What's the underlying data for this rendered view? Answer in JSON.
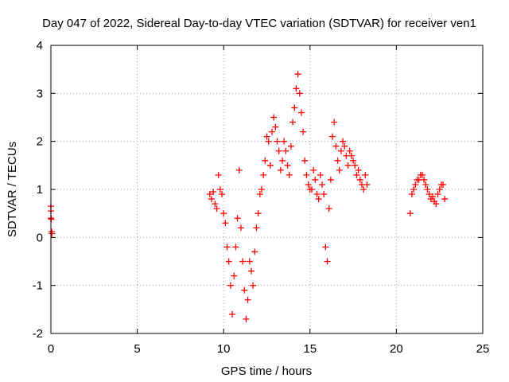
{
  "chart_data": {
    "type": "scatter",
    "title": "Day 047 of 2022, Sidereal Day-to-day VTEC variation (SDTVAR) for receiver ven1",
    "xlabel": "GPS time / hours",
    "ylabel": "SDTVAR / TECUs",
    "xlim": [
      0,
      25
    ],
    "ylim": [
      -2,
      4
    ],
    "xticks": [
      "0",
      "5",
      "10",
      "15",
      "20",
      "25"
    ],
    "yticks": [
      "-2",
      "-1",
      "0",
      "1",
      "2",
      "3",
      "4"
    ],
    "grid": true,
    "marker": "plus",
    "color": "#ff0000",
    "series": [
      {
        "x": [
          0.0,
          0.0,
          0.0,
          0.02,
          0.04,
          0.06
        ],
        "y": [
          0.65,
          0.55,
          0.4,
          0.38,
          0.12,
          0.08
        ]
      },
      {
        "x": [
          9.2,
          9.3,
          9.4,
          9.5,
          9.6,
          9.7,
          9.8,
          9.9,
          10.0,
          10.1,
          10.2,
          10.3,
          10.4,
          10.5,
          10.6,
          10.7,
          10.8,
          10.9,
          11.0,
          11.1,
          11.2,
          11.3,
          11.4,
          11.5,
          11.6,
          11.7,
          11.8,
          11.9,
          12.0,
          12.1,
          12.2,
          12.3,
          12.4,
          12.5,
          12.6,
          12.7,
          12.8,
          12.9,
          13.0,
          13.1,
          13.2,
          13.3,
          13.4,
          13.5,
          13.6,
          13.7,
          13.8,
          13.9,
          14.0,
          14.1,
          14.2,
          14.3,
          14.4,
          14.5,
          14.6,
          14.7,
          14.8,
          14.9,
          15.0,
          15.1,
          15.2,
          15.3,
          15.4,
          15.5,
          15.6,
          15.7,
          15.8,
          15.9,
          16.0,
          16.1,
          16.2,
          16.3,
          16.4,
          16.5,
          16.6,
          16.7,
          16.8,
          16.9,
          17.0,
          17.1,
          17.2,
          17.3,
          17.4,
          17.5,
          17.6,
          17.7,
          17.8,
          17.9,
          18.0,
          18.1,
          18.2,
          18.3
        ],
        "y": [
          0.9,
          0.8,
          0.95,
          0.7,
          0.6,
          1.3,
          1.0,
          0.9,
          0.5,
          0.3,
          -0.2,
          -0.5,
          -1.0,
          -1.6,
          -0.8,
          -0.2,
          0.4,
          1.4,
          0.2,
          -0.5,
          -1.1,
          -1.7,
          -1.3,
          -0.5,
          -0.7,
          -1.0,
          -0.3,
          0.2,
          0.5,
          0.9,
          1.0,
          1.3,
          1.6,
          2.1,
          2.0,
          1.5,
          2.2,
          2.5,
          2.3,
          2.0,
          1.8,
          1.4,
          1.6,
          2.0,
          1.8,
          1.5,
          1.3,
          1.9,
          2.4,
          2.7,
          3.1,
          3.4,
          3.0,
          2.6,
          2.2,
          1.6,
          1.3,
          1.1,
          1.0,
          1.0,
          1.4,
          1.2,
          0.9,
          0.8,
          1.3,
          1.1,
          0.9,
          -0.2,
          -0.5,
          0.6,
          1.2,
          2.1,
          2.4,
          1.9,
          1.6,
          1.4,
          1.8,
          2.0,
          1.9,
          1.7,
          1.5,
          1.8,
          1.7,
          1.6,
          1.5,
          1.3,
          1.4,
          1.2,
          1.1,
          1.0,
          1.3,
          1.1
        ]
      },
      {
        "x": [
          20.8,
          20.9,
          21.0,
          21.1,
          21.2,
          21.3,
          21.4,
          21.5,
          21.6,
          21.7,
          21.8,
          21.9,
          22.0,
          22.1,
          22.2,
          22.3,
          22.4,
          22.5,
          22.6,
          22.7,
          22.8
        ],
        "y": [
          0.5,
          0.9,
          1.0,
          1.1,
          1.2,
          1.2,
          1.3,
          1.3,
          1.2,
          1.1,
          1.0,
          0.9,
          0.8,
          0.85,
          0.75,
          0.7,
          0.9,
          1.0,
          1.1,
          1.1,
          0.8
        ]
      }
    ]
  }
}
